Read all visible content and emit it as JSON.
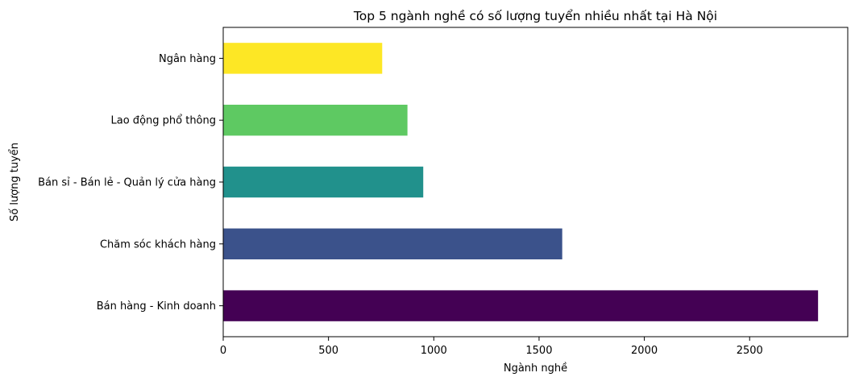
{
  "chart_data": {
    "type": "bar",
    "orientation": "horizontal",
    "title": "Top 5 ngành nghề có số lượng tuyển nhiều nhất tại Hà Nội",
    "xlabel": "Ngành nghề",
    "ylabel": "Số lượng tuyển",
    "categories": [
      "Bán hàng - Kinh doanh",
      "Chăm sóc khách hàng",
      "Bán sỉ - Bán lẻ - Quản lý cửa hàng",
      "Lao động phổ thông",
      "Ngân hàng"
    ],
    "values": [
      2825,
      1610,
      950,
      875,
      755
    ],
    "colors": [
      "#440154",
      "#3b528b",
      "#21918c",
      "#5ec962",
      "#fde725"
    ],
    "xlim": [
      0,
      2966
    ],
    "xticks": [
      0,
      500,
      1000,
      1500,
      2000,
      2500
    ],
    "grid": false,
    "legend": "none"
  }
}
